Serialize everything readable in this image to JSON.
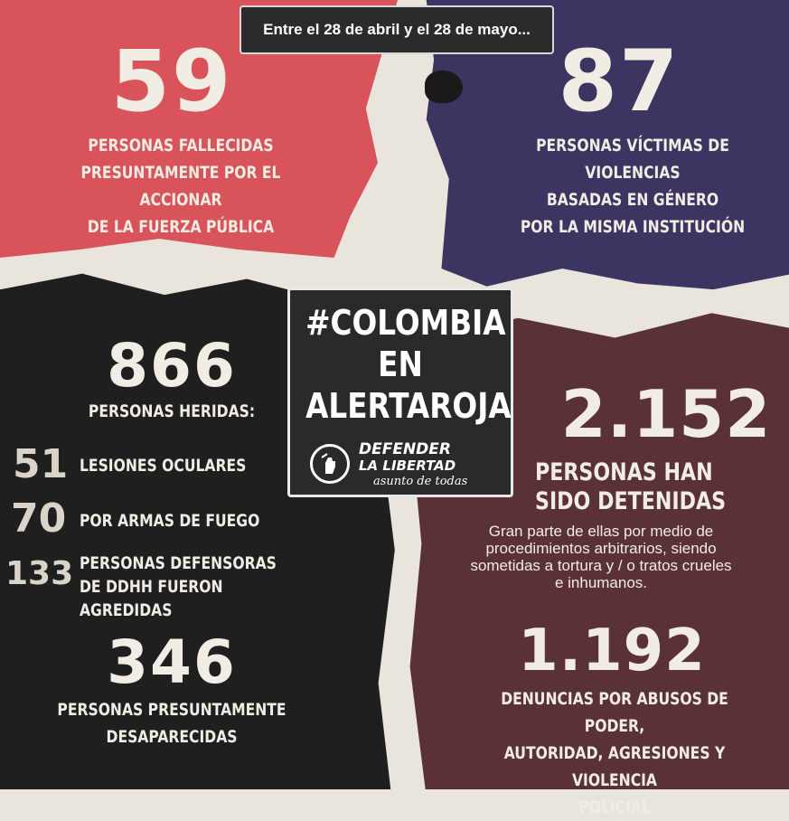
{
  "header": {
    "period": "Entre el 28 de abril y el 28 de mayo..."
  },
  "fallecidos": {
    "number": "59",
    "lines": [
      "PERSONAS FALLECIDAS",
      "PRESUNTAMENTE POR EL ACCIONAR",
      "DE LA FUERZA PÚBLICA"
    ]
  },
  "violencias": {
    "number": "87",
    "lines": [
      "PERSONAS VÍCTIMAS DE VIOLENCIAS",
      "BASADAS EN GÉNERO",
      "POR LA MISMA INSTITUCIÓN"
    ]
  },
  "heridos": {
    "number": "866",
    "label": "PERSONAS HERIDAS:",
    "items": [
      {
        "num": "51",
        "text": "LESIONES OCULARES"
      },
      {
        "num": "70",
        "text": "POR ARMAS DE FUEGO"
      },
      {
        "num": "133",
        "text1": "PERSONAS DEFENSORAS",
        "text2": "DE DDHH FUERON AGREDIDAS"
      }
    ]
  },
  "desaparecidos": {
    "number": "346",
    "lines": [
      "PERSONAS PRESUNTAMENTE",
      "DESAPARECIDAS"
    ]
  },
  "detenidos": {
    "number": "2.152",
    "lines": [
      "PERSONAS HAN",
      "SIDO DETENIDAS"
    ],
    "detail": [
      "Gran parte de ellas por medio de",
      "procedimientos arbitrarios, siendo",
      "sometidas a tortura y / o tratos crueles",
      "e inhumanos."
    ]
  },
  "denuncias": {
    "number": "1.192",
    "lines": [
      "DENUNCIAS POR ABUSOS DE PODER,",
      "AUTORIDAD, AGRESIONES Y VIOLENCIA",
      "POLICIAL"
    ]
  },
  "center": {
    "hashtag_lines": [
      "#COLOMBIA",
      "EN",
      "ALERTAROJA"
    ],
    "logo_line1": "DEFENDER",
    "logo_line2": "LA LIBERTAD",
    "logo_tagline": "asunto de todas"
  },
  "colors": {
    "red_panel": "#d9535b",
    "purple_panel": "#3d3561",
    "dark_panel": "#1f1f1f",
    "maroon_panel": "#5a3236",
    "paper": "#e9e4dc",
    "text": "#f1ece4"
  }
}
